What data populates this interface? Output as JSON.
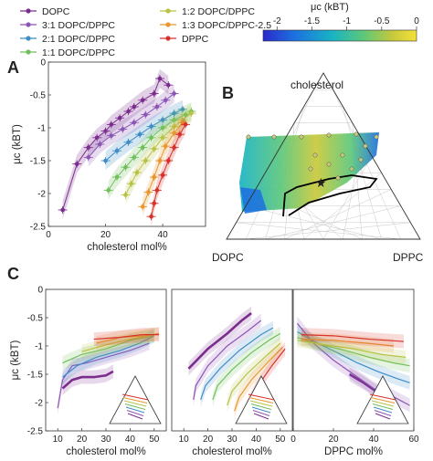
{
  "figure": {
    "panel_labels": [
      "A",
      "B",
      "C"
    ],
    "legend": {
      "entries": [
        {
          "label": "DOPC",
          "color": "#7B2D8E"
        },
        {
          "label": "3:1 DOPC/DPPC",
          "color": "#8C55B5"
        },
        {
          "label": "2:1 DOPC/DPPC",
          "color": "#3E8CC8"
        },
        {
          "label": "1:1 DOPC/DPPC",
          "color": "#6FBF5A"
        },
        {
          "label": "1:2 DOPC/DPPC",
          "color": "#B8C244"
        },
        {
          "label": "1:3 DOPC/DPPC-2.5",
          "color": "#E8962E"
        },
        {
          "label": "DPPC",
          "color": "#D6312B"
        }
      ]
    },
    "colorbar": {
      "title": "μc (kBT)",
      "ticks": [
        "-2",
        "-1.5",
        "-1",
        "-0.5",
        "0"
      ],
      "range": [
        -2.2,
        0
      ],
      "colors": [
        "#2A2BC9",
        "#1D6FE0",
        "#18B3C4",
        "#5CC77A",
        "#C9C93A",
        "#F4E23A"
      ]
    },
    "ternary": {
      "top": "cholesterol",
      "left": "DOPC",
      "right": "DPPC"
    }
  },
  "chart_data": [
    {
      "panel": "A",
      "type": "scatter",
      "xlabel": "cholesterol mol%",
      "ylabel": "μc (kBT)",
      "xlim": [
        0,
        55
      ],
      "ylim": [
        -2.5,
        0
      ],
      "xticks": [
        "0",
        "20",
        "40"
      ],
      "yticks": [
        "0",
        "-0.5",
        "-1",
        "-1.5",
        "-2",
        "-2.5"
      ],
      "series": [
        {
          "name": "DOPC",
          "points": [
            [
              5,
              -2.25
            ],
            [
              10,
              -1.55
            ],
            [
              14,
              -1.3
            ],
            [
              17,
              -1.15
            ],
            [
              20,
              -1.05
            ],
            [
              22,
              -0.95
            ],
            [
              25,
              -0.85
            ],
            [
              28,
              -0.75
            ],
            [
              30,
              -0.68
            ],
            [
              33,
              -0.58
            ],
            [
              37,
              -0.48
            ],
            [
              39,
              -0.25
            ],
            [
              42,
              -0.35
            ]
          ]
        },
        {
          "name": "3:1 DOPC/DPPC",
          "points": [
            [
              14,
              -1.45
            ],
            [
              18,
              -1.25
            ],
            [
              22,
              -1.12
            ],
            [
              26,
              -1.02
            ],
            [
              30,
              -0.92
            ],
            [
              34,
              -0.8
            ],
            [
              38,
              -0.68
            ],
            [
              41,
              -0.58
            ],
            [
              44,
              -0.48
            ]
          ]
        },
        {
          "name": "2:1 DOPC/DPPC",
          "points": [
            [
              20,
              -1.5
            ],
            [
              24,
              -1.35
            ],
            [
              28,
              -1.22
            ],
            [
              32,
              -1.1
            ],
            [
              36,
              -0.98
            ],
            [
              40,
              -0.88
            ],
            [
              44,
              -0.78
            ],
            [
              47,
              -0.72
            ]
          ]
        },
        {
          "name": "1:1 DOPC/DPPC",
          "points": [
            [
              21,
              -1.95
            ],
            [
              24,
              -1.75
            ],
            [
              27,
              -1.6
            ],
            [
              30,
              -1.45
            ],
            [
              33,
              -1.3
            ],
            [
              36,
              -1.15
            ],
            [
              40,
              -1.0
            ],
            [
              44,
              -0.88
            ],
            [
              48,
              -0.8
            ],
            [
              50,
              -0.75
            ]
          ]
        },
        {
          "name": "1:2 DOPC/DPPC",
          "points": [
            [
              27,
              -2.02
            ],
            [
              29,
              -1.85
            ],
            [
              31,
              -1.68
            ],
            [
              34,
              -1.5
            ],
            [
              37,
              -1.32
            ],
            [
              40,
              -1.15
            ],
            [
              44,
              -0.98
            ],
            [
              47,
              -0.88
            ],
            [
              50,
              -0.78
            ]
          ]
        },
        {
          "name": "1:3 DOPC/DPPC-2.5",
          "points": [
            [
              33,
              -2.2
            ],
            [
              35,
              -1.98
            ],
            [
              37,
              -1.75
            ],
            [
              39,
              -1.5
            ],
            [
              41,
              -1.28
            ],
            [
              44,
              -1.08
            ],
            [
              47,
              -0.92
            ]
          ]
        },
        {
          "name": "DPPC",
          "points": [
            [
              36,
              -2.35
            ],
            [
              37,
              -2.15
            ],
            [
              38,
              -1.95
            ],
            [
              40,
              -1.72
            ],
            [
              42,
              -1.5
            ],
            [
              44,
              -1.3
            ],
            [
              46,
              -1.1
            ],
            [
              48,
              -0.95
            ]
          ]
        }
      ]
    },
    {
      "panel": "C-1",
      "type": "line",
      "xlabel": "cholesterol mol%",
      "ylabel": "μc (kBT)",
      "xlim": [
        5,
        55
      ],
      "ylim": [
        -2.5,
        0
      ],
      "xticks": [
        "10",
        "20",
        "30",
        "40",
        "50"
      ],
      "yticks": [
        "0",
        "-0.5",
        "-1",
        "-1.5",
        "-2",
        "-2.5"
      ],
      "series": [
        {
          "name": "DOPC",
          "points": [
            [
              12,
              -1.75
            ],
            [
              16,
              -1.6
            ],
            [
              20,
              -1.55
            ],
            [
              25,
              -1.55
            ],
            [
              30,
              -1.52
            ],
            [
              33,
              -1.45
            ]
          ]
        },
        {
          "name": "3:1 DOPC/DPPC",
          "points": [
            [
              10,
              -2.1
            ],
            [
              12,
              -1.6
            ],
            [
              16,
              -1.35
            ],
            [
              22,
              -1.3
            ],
            [
              30,
              -1.2
            ],
            [
              40,
              -1.08
            ],
            [
              48,
              -0.95
            ]
          ]
        },
        {
          "name": "2:1 DOPC/DPPC",
          "points": [
            [
              12,
              -1.55
            ],
            [
              18,
              -1.35
            ],
            [
              26,
              -1.2
            ],
            [
              36,
              -1.08
            ],
            [
              44,
              -0.95
            ],
            [
              50,
              -0.82
            ]
          ]
        },
        {
          "name": "1:1 DOPC/DPPC",
          "points": [
            [
              12,
              -1.3
            ],
            [
              20,
              -1.15
            ],
            [
              30,
              -1.05
            ],
            [
              40,
              -0.9
            ],
            [
              50,
              -0.82
            ]
          ]
        },
        {
          "name": "1:2 DOPC/DPPC",
          "points": [
            [
              20,
              -1.1
            ],
            [
              30,
              -0.98
            ],
            [
              40,
              -0.88
            ],
            [
              50,
              -0.8
            ]
          ]
        },
        {
          "name": "1:3 DOPC/DPPC-2.5",
          "points": [
            [
              26,
              -0.95
            ],
            [
              36,
              -0.85
            ],
            [
              46,
              -0.82
            ],
            [
              52,
              -0.78
            ]
          ]
        },
        {
          "name": "DPPC",
          "points": [
            [
              25,
              -0.88
            ],
            [
              35,
              -0.85
            ],
            [
              45,
              -0.8
            ],
            [
              52,
              -0.8
            ]
          ]
        }
      ]
    },
    {
      "panel": "C-2",
      "type": "line",
      "xlabel": "cholesterol mol%",
      "xlim": [
        5,
        55
      ],
      "ylim": [
        -2.5,
        0
      ],
      "xticks": [
        "10",
        "20",
        "30",
        "40",
        "50"
      ],
      "series": [
        {
          "name": "DOPC",
          "points": [
            [
              12,
              -1.4
            ],
            [
              20,
              -1.05
            ],
            [
              28,
              -0.78
            ],
            [
              34,
              -0.55
            ],
            [
              38,
              -0.42
            ]
          ]
        },
        {
          "name": "3:1 DOPC/DPPC",
          "points": [
            [
              14,
              -1.95
            ],
            [
              15,
              -1.7
            ],
            [
              20,
              -1.35
            ],
            [
              28,
              -1.0
            ],
            [
              36,
              -0.75
            ],
            [
              42,
              -0.55
            ]
          ]
        },
        {
          "name": "2:1 DOPC/DPPC",
          "points": [
            [
              17,
              -1.95
            ],
            [
              19,
              -1.7
            ],
            [
              25,
              -1.4
            ],
            [
              33,
              -1.08
            ],
            [
              42,
              -0.8
            ],
            [
              47,
              -0.68
            ]
          ]
        },
        {
          "name": "1:1 DOPC/DPPC",
          "points": [
            [
              22,
              -1.95
            ],
            [
              24,
              -1.7
            ],
            [
              30,
              -1.42
            ],
            [
              38,
              -1.12
            ],
            [
              46,
              -0.88
            ],
            [
              50,
              -0.78
            ]
          ]
        },
        {
          "name": "1:2 DOPC/DPPC",
          "points": [
            [
              28,
              -2.05
            ],
            [
              30,
              -1.8
            ],
            [
              36,
              -1.5
            ],
            [
              44,
              -1.18
            ],
            [
              50,
              -0.95
            ]
          ]
        },
        {
          "name": "1:3 DOPC/DPPC-2.5",
          "points": [
            [
              31,
              -2.15
            ],
            [
              33,
              -1.9
            ],
            [
              38,
              -1.6
            ],
            [
              45,
              -1.28
            ],
            [
              51,
              -1.02
            ]
          ]
        },
        {
          "name": "DPPC",
          "points": [
            [
              36,
              -2.1
            ],
            [
              40,
              -1.75
            ],
            [
              46,
              -1.38
            ],
            [
              52,
              -1.05
            ]
          ]
        }
      ]
    },
    {
      "panel": "C-3",
      "type": "line",
      "xlabel": "DPPC mol%",
      "xlim": [
        0,
        60
      ],
      "ylim": [
        -2.5,
        0
      ],
      "xticks": [
        "0",
        "20",
        "40",
        "60"
      ],
      "series": [
        {
          "name": "DOPC",
          "points": [
            [
              28,
              -1.5
            ],
            [
              35,
              -1.65
            ],
            [
              42,
              -1.82
            ],
            [
              48,
              -1.85
            ]
          ]
        },
        {
          "name": "3:1 DOPC/DPPC",
          "points": [
            [
              2,
              -0.6
            ],
            [
              10,
              -0.95
            ],
            [
              20,
              -1.25
            ],
            [
              30,
              -1.5
            ],
            [
              40,
              -1.75
            ],
            [
              50,
              -1.9
            ],
            [
              58,
              -2.05
            ]
          ]
        },
        {
          "name": "2:1 DOPC/DPPC",
          "points": [
            [
              2,
              -0.75
            ],
            [
              12,
              -0.95
            ],
            [
              22,
              -1.12
            ],
            [
              32,
              -1.3
            ],
            [
              42,
              -1.45
            ],
            [
              52,
              -1.58
            ],
            [
              58,
              -1.65
            ]
          ]
        },
        {
          "name": "1:1 DOPC/DPPC",
          "points": [
            [
              2,
              -0.85
            ],
            [
              14,
              -0.98
            ],
            [
              26,
              -1.08
            ],
            [
              38,
              -1.2
            ],
            [
              50,
              -1.3
            ],
            [
              58,
              -1.35
            ]
          ]
        },
        {
          "name": "1:2 DOPC/DPPC",
          "points": [
            [
              2,
              -0.9
            ],
            [
              16,
              -0.98
            ],
            [
              30,
              -1.05
            ],
            [
              44,
              -1.15
            ],
            [
              56,
              -1.2
            ]
          ]
        },
        {
          "name": "1:3 DOPC/DPPC-2.5",
          "points": [
            [
              4,
              -0.88
            ],
            [
              20,
              -0.9
            ],
            [
              36,
              -0.95
            ],
            [
              50,
              -1.0
            ]
          ]
        },
        {
          "name": "DPPC",
          "points": [
            [
              4,
              -0.8
            ],
            [
              20,
              -0.82
            ],
            [
              38,
              -0.88
            ],
            [
              55,
              -0.92
            ]
          ]
        }
      ]
    }
  ]
}
